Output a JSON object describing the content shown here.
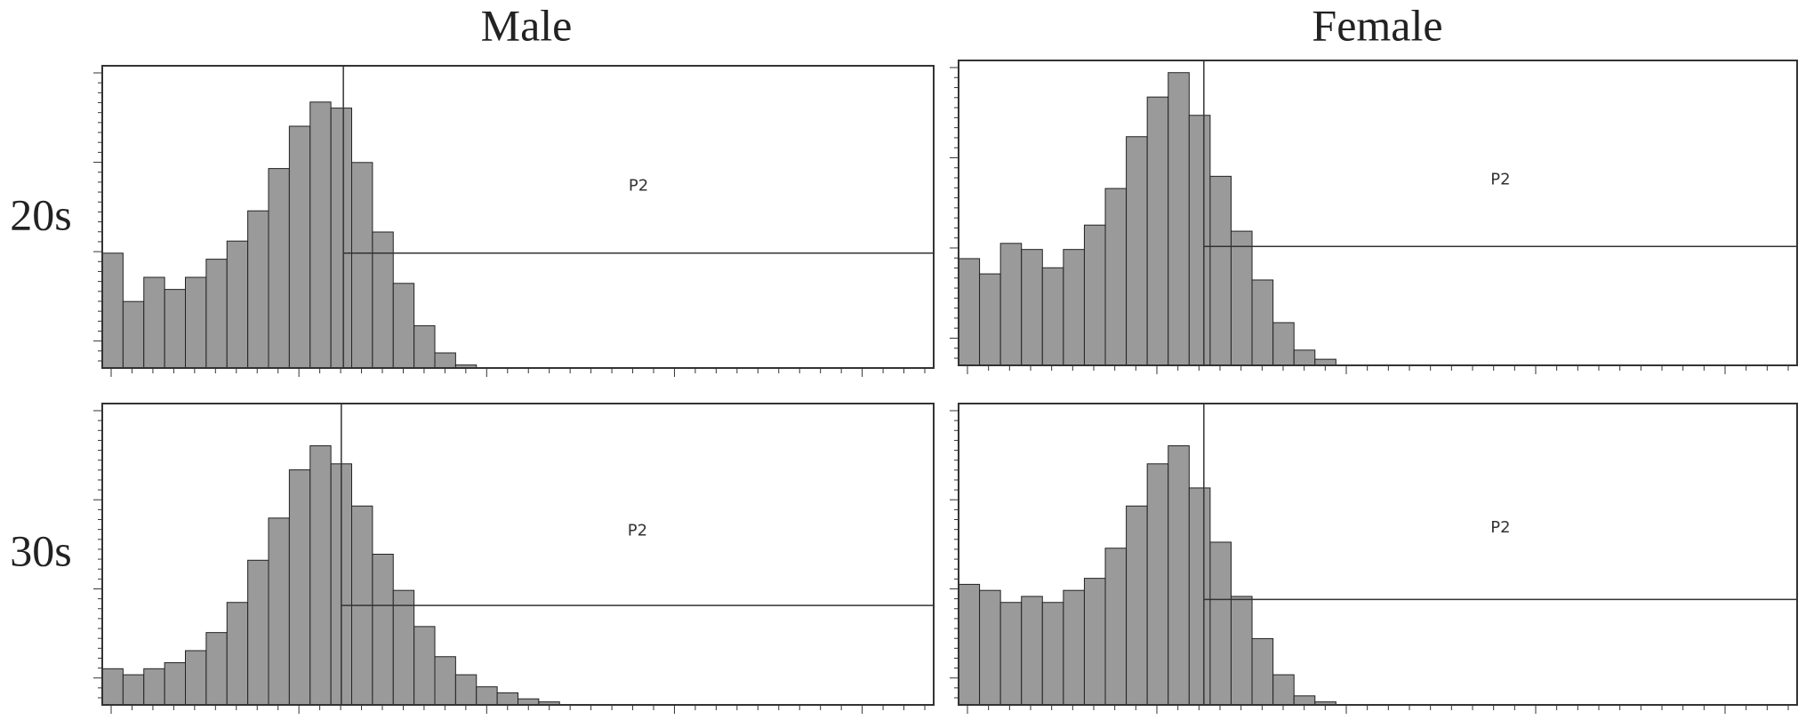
{
  "columns": [
    "Male",
    "Female"
  ],
  "rows": [
    "20s",
    "30s"
  ],
  "chart_data": [
    {
      "type": "histogram",
      "bins": [
        0,
        1,
        2,
        3,
        4,
        5,
        6,
        7,
        8,
        9,
        10,
        11,
        12,
        13,
        14,
        15,
        16,
        17,
        18,
        19,
        20,
        21,
        22,
        23,
        24,
        25,
        26,
        27,
        28,
        29,
        30,
        31,
        32,
        33,
        34,
        35,
        36,
        37,
        38,
        39,
        40
      ],
      "values": [
        38,
        22,
        30,
        26,
        30,
        36,
        42,
        52,
        66,
        80,
        88,
        86,
        68,
        45,
        28,
        14,
        5,
        1,
        0,
        0,
        0,
        0,
        0,
        0,
        0,
        0,
        0,
        0,
        0,
        0,
        0,
        0,
        0,
        0,
        0,
        0,
        0,
        0,
        0,
        0
      ],
      "xlim": [
        0,
        40
      ],
      "ylim": [
        0,
        100
      ],
      "color": "#9a9a9a",
      "gate": {
        "label": "P2",
        "x": 11.6,
        "y": 38
      }
    },
    {
      "type": "histogram",
      "bins": [
        0,
        1,
        2,
        3,
        4,
        5,
        6,
        7,
        8,
        9,
        10,
        11,
        12,
        13,
        14,
        15,
        16,
        17,
        18,
        19,
        20,
        21,
        22,
        23,
        24,
        25,
        26,
        27,
        28,
        29,
        30,
        31,
        32,
        33,
        34,
        35,
        36,
        37,
        38,
        39,
        40
      ],
      "values": [
        35,
        30,
        40,
        38,
        32,
        38,
        46,
        58,
        75,
        88,
        96,
        82,
        62,
        44,
        28,
        14,
        5,
        2,
        0,
        0,
        0,
        0,
        0,
        0,
        0,
        0,
        0,
        0,
        0,
        0,
        0,
        0,
        0,
        0,
        0,
        0,
        0,
        0,
        0,
        0
      ],
      "xlim": [
        0,
        40
      ],
      "ylim": [
        0,
        100
      ],
      "color": "#9a9a9a",
      "gate": {
        "label": "P2",
        "x": 11.7,
        "y": 39
      }
    },
    {
      "type": "histogram",
      "bins": [
        0,
        1,
        2,
        3,
        4,
        5,
        6,
        7,
        8,
        9,
        10,
        11,
        12,
        13,
        14,
        15,
        16,
        17,
        18,
        19,
        20,
        21,
        22,
        23,
        24,
        25,
        26,
        27,
        28,
        29,
        30,
        31,
        32,
        33,
        34,
        35,
        36,
        37,
        38,
        39,
        40
      ],
      "values": [
        12,
        10,
        12,
        14,
        18,
        24,
        34,
        48,
        62,
        78,
        86,
        80,
        66,
        50,
        38,
        26,
        16,
        10,
        6,
        4,
        2,
        1,
        0,
        0,
        0,
        0,
        0,
        0,
        0,
        0,
        0,
        0,
        0,
        0,
        0,
        0,
        0,
        0,
        0,
        0
      ],
      "xlim": [
        0,
        40
      ],
      "ylim": [
        0,
        100
      ],
      "color": "#9a9a9a",
      "gate": {
        "label": "P2",
        "x": 11.5,
        "y": 33
      }
    },
    {
      "type": "histogram",
      "bins": [
        0,
        1,
        2,
        3,
        4,
        5,
        6,
        7,
        8,
        9,
        10,
        11,
        12,
        13,
        14,
        15,
        16,
        17,
        18,
        19,
        20,
        21,
        22,
        23,
        24,
        25,
        26,
        27,
        28,
        29,
        30,
        31,
        32,
        33,
        34,
        35,
        36,
        37,
        38,
        39,
        40
      ],
      "values": [
        40,
        38,
        34,
        36,
        34,
        38,
        42,
        52,
        66,
        80,
        86,
        72,
        54,
        36,
        22,
        10,
        3,
        1,
        0,
        0,
        0,
        0,
        0,
        0,
        0,
        0,
        0,
        0,
        0,
        0,
        0,
        0,
        0,
        0,
        0,
        0,
        0,
        0,
        0,
        0
      ],
      "xlim": [
        0,
        40
      ],
      "ylim": [
        0,
        100
      ],
      "color": "#9a9a9a",
      "gate": {
        "label": "P2",
        "x": 11.7,
        "y": 35
      }
    }
  ]
}
